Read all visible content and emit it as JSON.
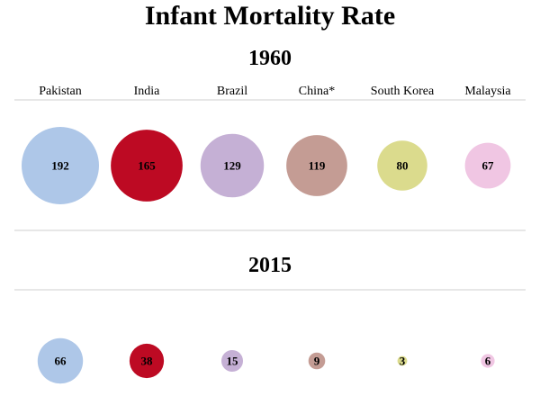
{
  "chart_data": {
    "type": "bubble",
    "title": "Infant Mortality Rate",
    "countries": [
      "Pakistan",
      "India",
      "Brazil",
      "China*",
      "South Korea",
      "Malaysia"
    ],
    "colors": [
      "#aec7e8",
      "#bd0a23",
      "#c5b0d5",
      "#c49c94",
      "#dbdb8d",
      "#f0c6e3"
    ],
    "panels": [
      {
        "year": "1960",
        "values": [
          192,
          165,
          129,
          119,
          80,
          67
        ]
      },
      {
        "year": "2015",
        "values": [
          66,
          38,
          15,
          9,
          3,
          6
        ]
      }
    ]
  }
}
